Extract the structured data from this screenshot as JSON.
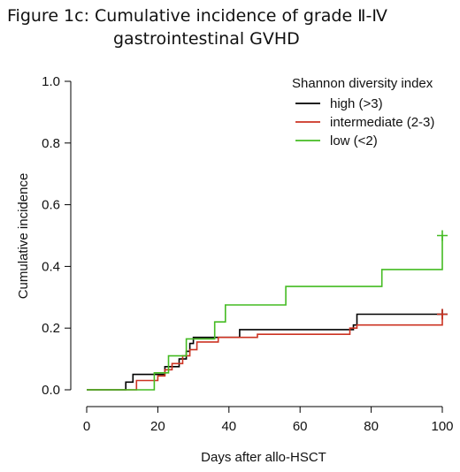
{
  "figure": {
    "title_line1": "Figure 1c: Cumulative incidence of grade Ⅱ-Ⅳ",
    "title_line2": "gastrointestinal GVHD"
  },
  "chart_data": {
    "type": "line",
    "xlabel": "Days after allo-HSCT",
    "ylabel": "Cumulative incidence",
    "xlim": [
      0,
      100
    ],
    "ylim": [
      0,
      1.0
    ],
    "x_ticks": [
      0,
      20,
      40,
      60,
      80,
      100
    ],
    "y_ticks": [
      0.0,
      0.2,
      0.4,
      0.6,
      0.8,
      1.0
    ],
    "x_tick_labels": [
      "0",
      "20",
      "40",
      "60",
      "80",
      "100"
    ],
    "y_tick_labels": [
      "0.0",
      "0.2",
      "0.4",
      "0.6",
      "0.8",
      "1.0"
    ],
    "grid": false,
    "legend": {
      "title": "Shannon diversity index",
      "placement": "top-right"
    },
    "series": [
      {
        "name": "high (>3)",
        "color": "#000000",
        "step": true,
        "points": [
          [
            0,
            0
          ],
          [
            11,
            0
          ],
          [
            11,
            0.025
          ],
          [
            13,
            0.025
          ],
          [
            13,
            0.05
          ],
          [
            22,
            0.05
          ],
          [
            22,
            0.075
          ],
          [
            26,
            0.075
          ],
          [
            26,
            0.1
          ],
          [
            28,
            0.1
          ],
          [
            28,
            0.125
          ],
          [
            29,
            0.125
          ],
          [
            29,
            0.15
          ],
          [
            30,
            0.15
          ],
          [
            30,
            0.17
          ],
          [
            43,
            0.17
          ],
          [
            43,
            0.195
          ],
          [
            75,
            0.195
          ],
          [
            75,
            0.21
          ],
          [
            76,
            0.21
          ],
          [
            76,
            0.245
          ],
          [
            100,
            0.245
          ]
        ],
        "censor": [
          [
            100,
            0.245
          ]
        ]
      },
      {
        "name": "intermediate (2-3)",
        "color": "#cc3322",
        "step": true,
        "points": [
          [
            0,
            0
          ],
          [
            14,
            0
          ],
          [
            14,
            0.03
          ],
          [
            20,
            0.03
          ],
          [
            20,
            0.045
          ],
          [
            22,
            0.045
          ],
          [
            22,
            0.065
          ],
          [
            24,
            0.065
          ],
          [
            24,
            0.085
          ],
          [
            27,
            0.085
          ],
          [
            27,
            0.11
          ],
          [
            29,
            0.11
          ],
          [
            29,
            0.13
          ],
          [
            31,
            0.13
          ],
          [
            31,
            0.155
          ],
          [
            37,
            0.155
          ],
          [
            37,
            0.17
          ],
          [
            48,
            0.17
          ],
          [
            48,
            0.18
          ],
          [
            74,
            0.18
          ],
          [
            74,
            0.2
          ],
          [
            76,
            0.2
          ],
          [
            76,
            0.21
          ],
          [
            100,
            0.21
          ],
          [
            100,
            0.245
          ]
        ],
        "censor": [
          [
            100,
            0.245
          ]
        ]
      },
      {
        "name": "low (<2)",
        "color": "#44bb22",
        "step": true,
        "points": [
          [
            0,
            0
          ],
          [
            19,
            0
          ],
          [
            19,
            0.055
          ],
          [
            23,
            0.055
          ],
          [
            23,
            0.11
          ],
          [
            28,
            0.11
          ],
          [
            28,
            0.165
          ],
          [
            36,
            0.165
          ],
          [
            36,
            0.22
          ],
          [
            39,
            0.22
          ],
          [
            39,
            0.275
          ],
          [
            56,
            0.275
          ],
          [
            56,
            0.335
          ],
          [
            83,
            0.335
          ],
          [
            83,
            0.39
          ],
          [
            100,
            0.39
          ],
          [
            100,
            0.5
          ]
        ],
        "censor": [
          [
            100,
            0.5
          ]
        ]
      }
    ]
  }
}
